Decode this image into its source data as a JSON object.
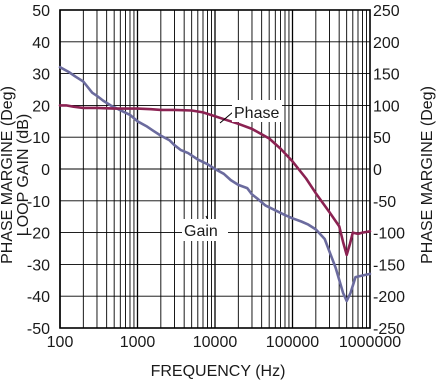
{
  "chart_data": {
    "type": "line",
    "xlabel": "FREQUENCY (Hz)",
    "ylabel_left": "LOOP GAIN (dB)",
    "ylabel_left_overlay": "PHASE MARGINE (Deg)",
    "ylabel_right": "PHASE MARGINE (Deg)",
    "x_scale": "log",
    "xlim": [
      100,
      1000000
    ],
    "ylim_left": [
      -50,
      50
    ],
    "ylim_right": [
      -250,
      250
    ],
    "x_ticks": [
      "100",
      "1000",
      "10000",
      "100000",
      "1000000"
    ],
    "y_ticks_left": [
      "50",
      "40",
      "30",
      "20",
      "10",
      "0",
      "-10",
      "-20",
      "-30",
      "-40",
      "-50"
    ],
    "y_ticks_right": [
      "250",
      "200",
      "150",
      "100",
      "50",
      "0",
      "-50",
      "-100",
      "-150",
      "-200",
      "-250"
    ],
    "grid": true,
    "series": [
      {
        "name": "Gain",
        "axis": "left",
        "color": "#6b6b9e",
        "x": [
          100,
          130,
          160,
          200,
          260,
          300,
          360,
          450,
          600,
          800,
          1000,
          1300,
          1600,
          2000,
          2600,
          3000,
          3600,
          4500,
          6000,
          8000,
          10000,
          13000,
          16000,
          20000,
          26000,
          30000,
          36000,
          45000,
          60000,
          80000,
          100000,
          130000,
          160000,
          200000,
          260000,
          300000,
          360000,
          450000,
          500000,
          560000,
          650000,
          800000,
          1000000
        ],
        "values": [
          32,
          30.5,
          29,
          27.5,
          24,
          23,
          21.5,
          20,
          18.5,
          17,
          15,
          13.5,
          12,
          10.5,
          9,
          7.5,
          6,
          5,
          3,
          1.5,
          0,
          -1.5,
          -3.5,
          -5,
          -6,
          -8,
          -9.5,
          -11.5,
          -13,
          -14.5,
          -15.5,
          -16.5,
          -17.5,
          -19,
          -22,
          -26,
          -31,
          -39,
          -41.5,
          -39,
          -34,
          -33.5,
          -33
        ]
      },
      {
        "name": "Phase",
        "axis": "right",
        "color": "#8b2252",
        "x": [
          100,
          120,
          150,
          200,
          300,
          500,
          700,
          1000,
          1500,
          2000,
          3000,
          5000,
          7000,
          10000,
          15000,
          20000,
          30000,
          50000,
          70000,
          100000,
          150000,
          200000,
          300000,
          400000,
          450000,
          500000,
          550000,
          600000,
          700000,
          800000,
          1000000
        ],
        "values": [
          100,
          100,
          98,
          96,
          96,
          95,
          95,
          95,
          94,
          93,
          93,
          92,
          89,
          83,
          76,
          71,
          63,
          48,
          32,
          12,
          -15,
          -38,
          -68,
          -90,
          -115,
          -135,
          -118,
          -100,
          -102,
          -100,
          -98
        ]
      }
    ],
    "annotations": [
      "Phase",
      "Gain"
    ]
  }
}
